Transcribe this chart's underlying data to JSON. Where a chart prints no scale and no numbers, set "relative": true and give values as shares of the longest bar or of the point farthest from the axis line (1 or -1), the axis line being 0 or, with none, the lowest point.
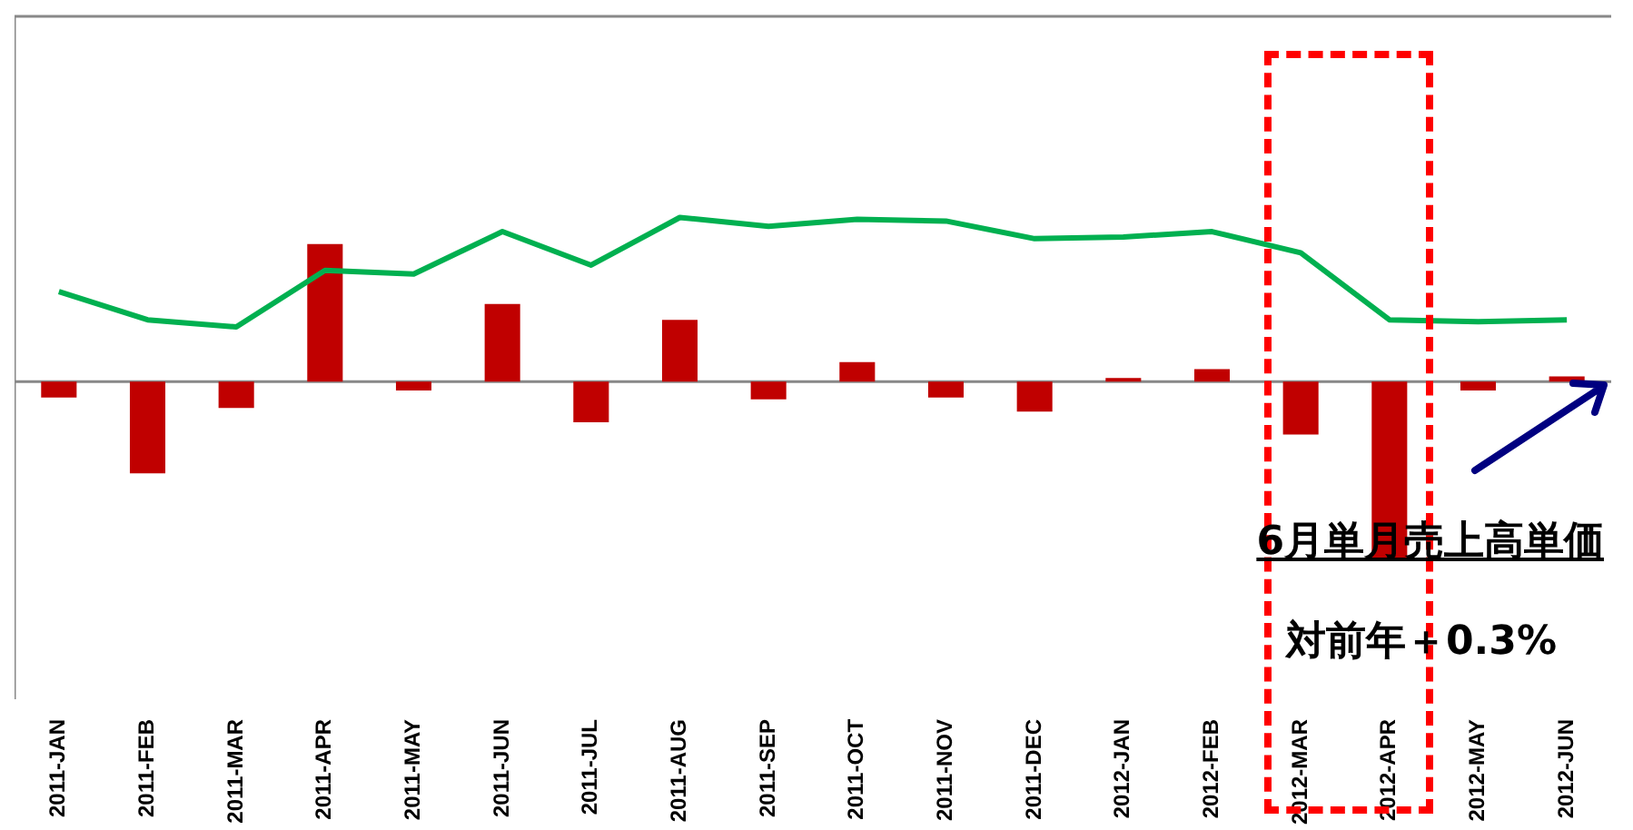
{
  "chart_data": {
    "type": "bar",
    "relative": true,
    "grid": false,
    "legend": false,
    "categories": [
      "2011-JAN",
      "2011-FEB",
      "2011-MAR",
      "2011-APR",
      "2011-MAY",
      "2011-JUN",
      "2011-JUL",
      "2011-AUG",
      "2011-SEP",
      "2011-OCT",
      "2011-NOV",
      "2011-DEC",
      "2012-JAN",
      "2012-FEB",
      "2012-MAR",
      "2012-APR",
      "2012-MAY",
      "2012-JUN"
    ],
    "series": [
      {
        "color": "#c00000",
        "values": [
          -0.09,
          -0.52,
          -0.15,
          0.78,
          -0.05,
          0.44,
          -0.23,
          0.35,
          -0.1,
          0.11,
          -0.09,
          -0.17,
          0.02,
          0.07,
          -0.3,
          -1,
          -0.05,
          0.03
        ]
      },
      {
        "type": "line",
        "color": "#00b050",
        "values": [
          0.51,
          0.35,
          0.31,
          0.63,
          0.61,
          0.85,
          0.66,
          0.93,
          0.88,
          0.92,
          0.91,
          0.81,
          0.82,
          0.85,
          0.73,
          0.35,
          0.34,
          0.35
        ]
      }
    ],
    "annotations": [
      "6月単月売上高単価",
      "対前年＋0.3%"
    ]
  }
}
